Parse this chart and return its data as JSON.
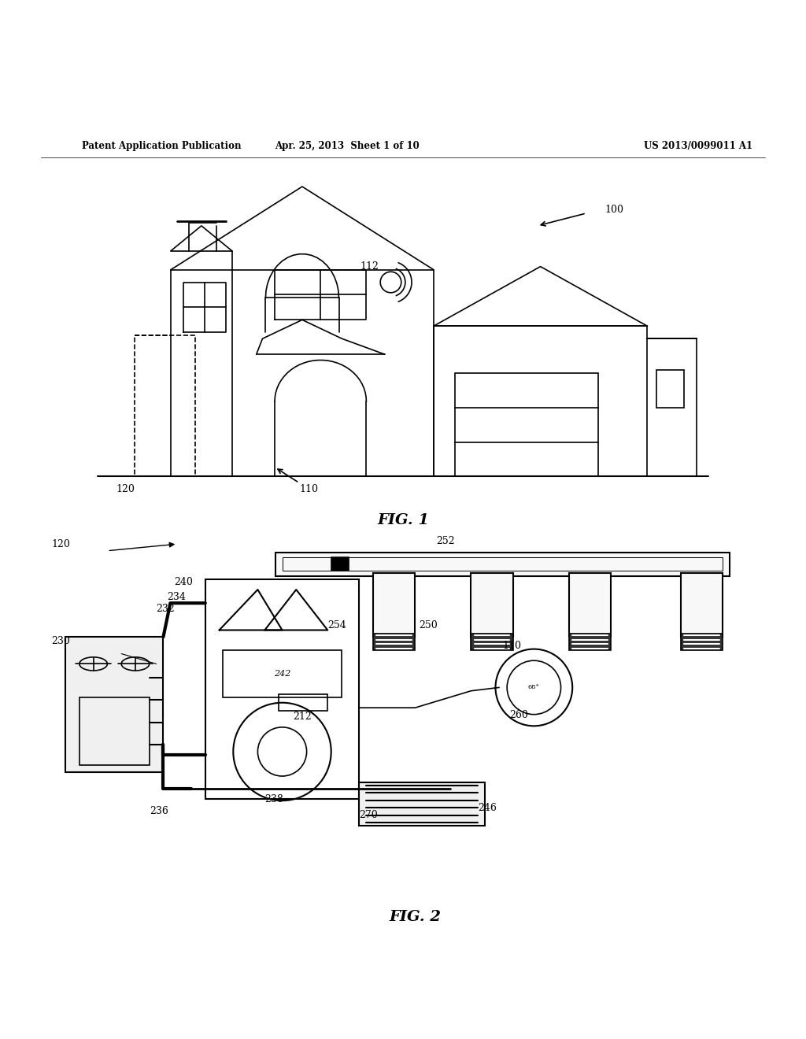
{
  "header_left": "Patent Application Publication",
  "header_mid": "Apr. 25, 2013  Sheet 1 of 10",
  "header_right": "US 2013/0099011 A1",
  "fig1_label": "FIG. 1",
  "fig2_label": "FIG. 2",
  "bg_color": "#ffffff",
  "line_color": "#000000"
}
